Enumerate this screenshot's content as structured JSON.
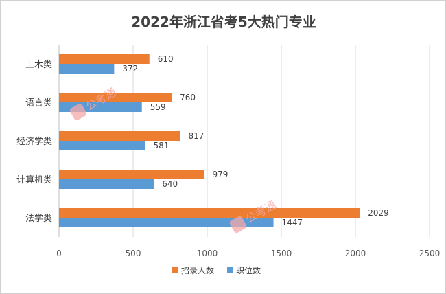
{
  "chart_data": {
    "type": "bar",
    "orientation": "horizontal",
    "title": "2022年浙江省考5大热门专业",
    "categories": [
      "土木类",
      "语言类",
      "经济学类",
      "计算机类",
      "法学类"
    ],
    "series": [
      {
        "name": "招录人数",
        "color": "#ED7D31",
        "values": [
          610,
          760,
          817,
          979,
          2029
        ]
      },
      {
        "name": "职位数",
        "color": "#5B9BD5",
        "values": [
          372,
          559,
          581,
          640,
          1447
        ]
      }
    ],
    "xlim": [
      0,
      2500
    ],
    "xticks": [
      0,
      500,
      1000,
      1500,
      2000,
      2500
    ],
    "grid": true,
    "legend_position": "bottom"
  },
  "watermark": {
    "text": "公考通",
    "icon": "gkt-logo-icon"
  }
}
